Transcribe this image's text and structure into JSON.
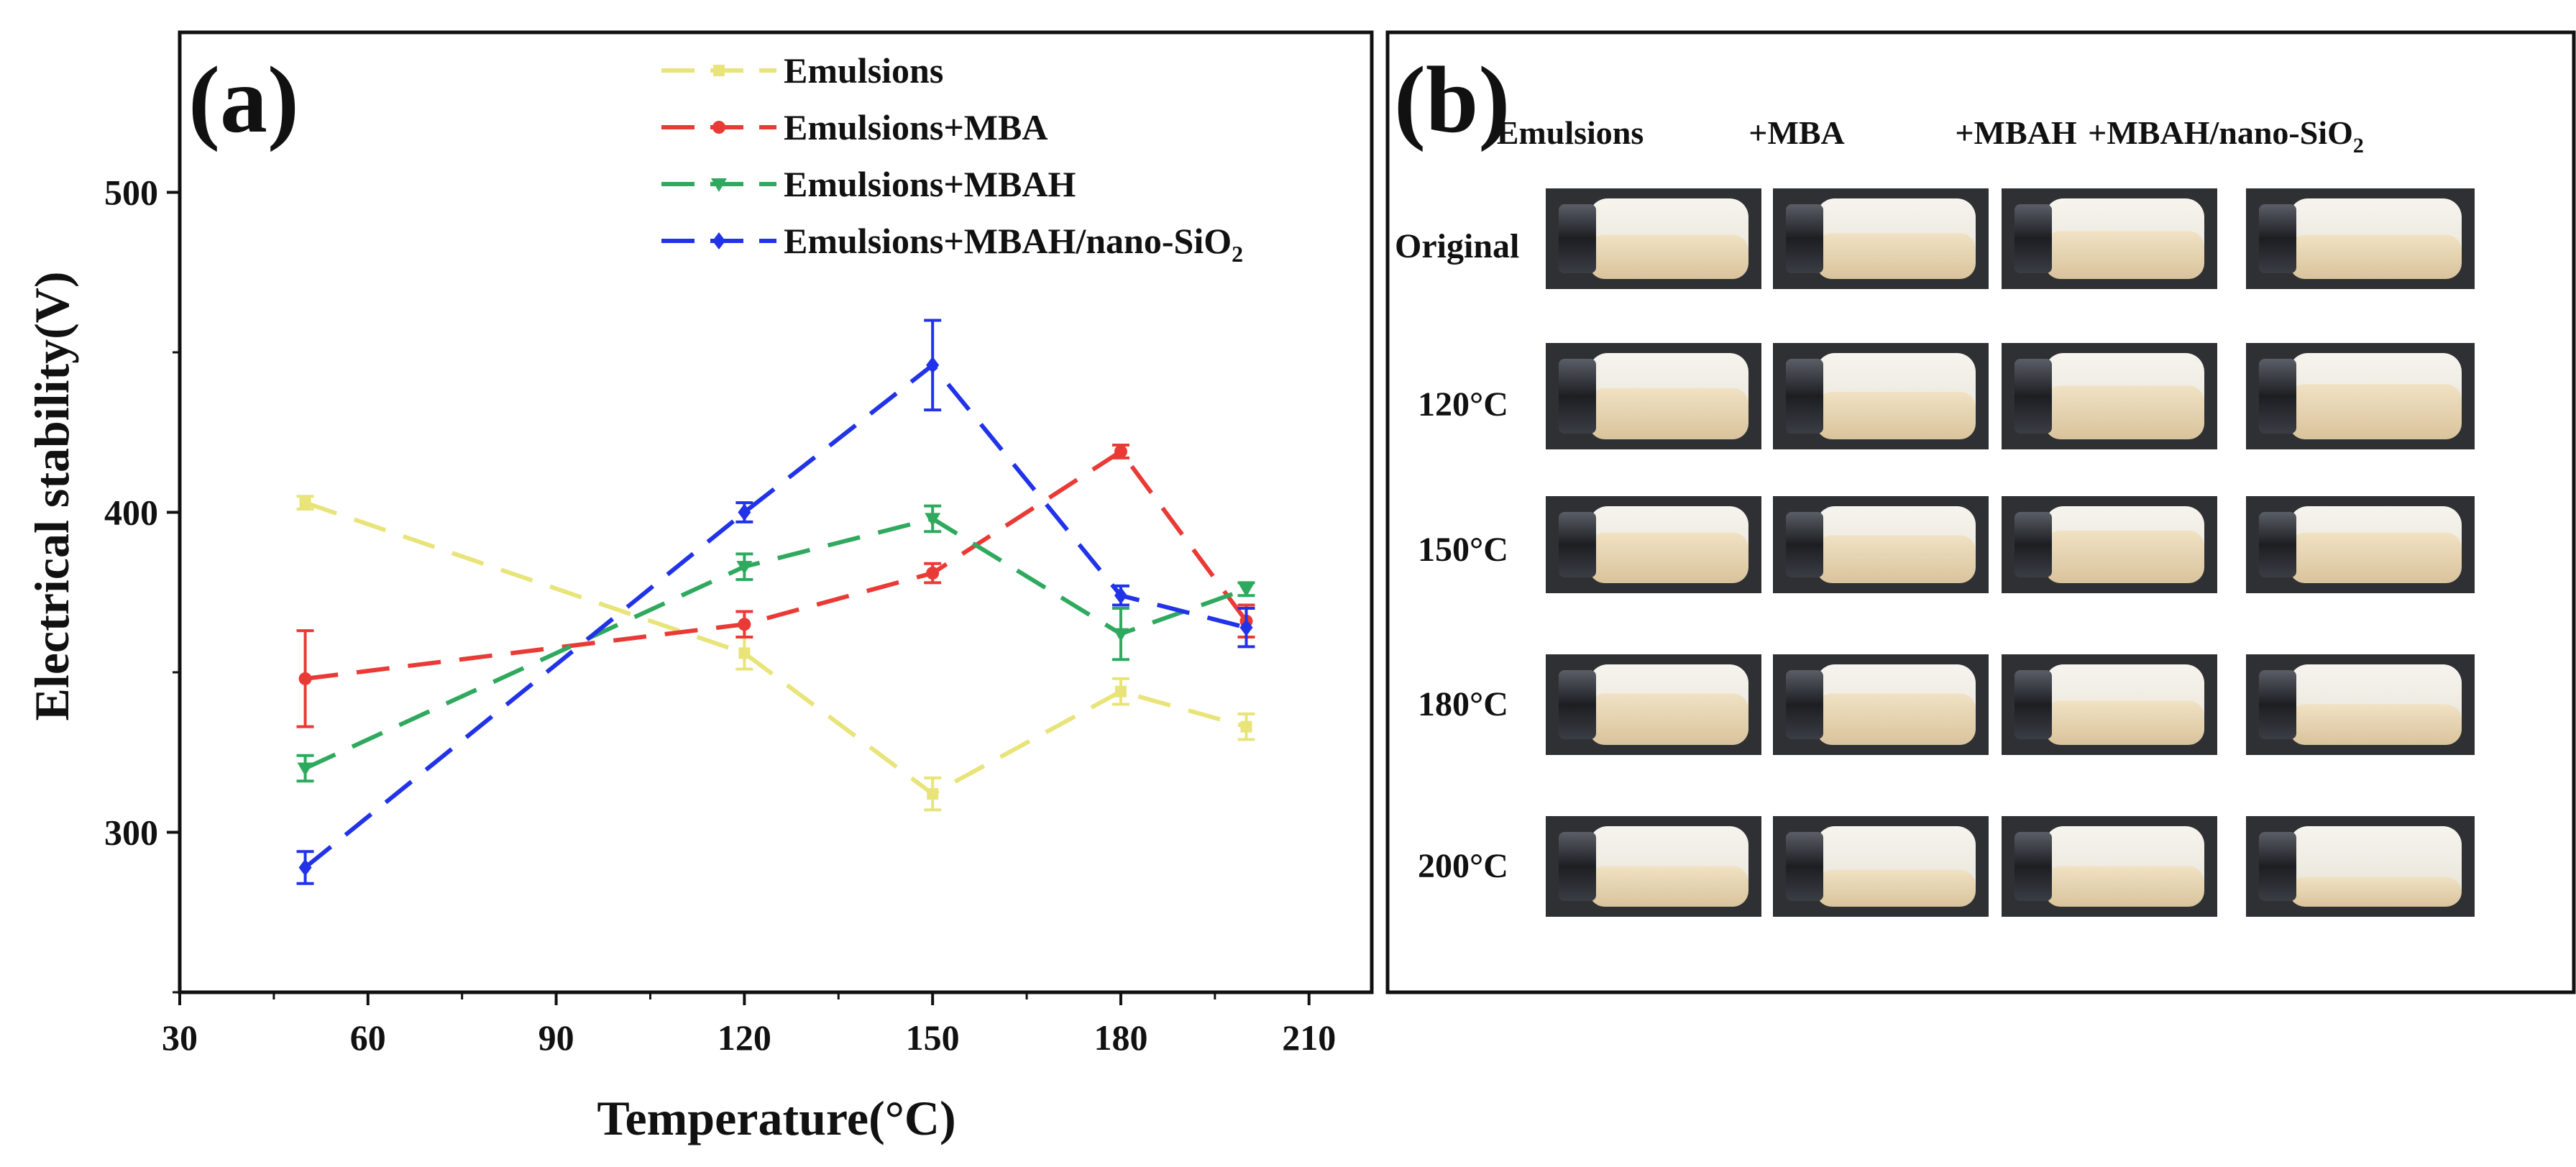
{
  "panel_a": {
    "label": "(a)",
    "chart_data": {
      "type": "line",
      "xlabel": "Temperature(°C)",
      "ylabel": "Electrical stability(V)",
      "xlim": [
        30,
        220
      ],
      "ylim": [
        250,
        550
      ],
      "x_ticks": [
        30,
        60,
        90,
        120,
        150,
        180,
        210
      ],
      "y_ticks": [
        300,
        400,
        500
      ],
      "x": [
        50,
        120,
        150,
        180,
        200
      ],
      "series": [
        {
          "name": "Emulsions",
          "color": "#e8e47a",
          "marker": "square",
          "values": [
            403,
            356,
            312,
            344,
            333
          ],
          "errors": [
            2,
            5,
            5,
            4,
            4
          ]
        },
        {
          "name": "Emulsions+MBA",
          "color": "#ea3a35",
          "marker": "circle",
          "values": [
            348,
            365,
            381,
            419,
            366
          ],
          "errors": [
            15,
            4,
            3,
            2,
            5
          ]
        },
        {
          "name": "Emulsions+MBAH",
          "color": "#2fa95e",
          "marker": "triangle-down",
          "values": [
            320,
            383,
            398,
            362,
            376
          ],
          "errors": [
            4,
            4,
            4,
            8,
            2
          ]
        },
        {
          "name": "Emulsions+MBAH/nano-SiO",
          "name_sub": "2",
          "color": "#2133e8",
          "marker": "diamond",
          "values": [
            289,
            400,
            446,
            374,
            364
          ],
          "errors": [
            5,
            3,
            14,
            3,
            6
          ]
        }
      ]
    }
  },
  "panel_b": {
    "label": "(b)",
    "columns": [
      "Emulsions",
      "+MBA",
      "+MBAH",
      "+MBAH/nano-SiO"
    ],
    "last_column_sub": "2",
    "rows": [
      "Original",
      "120°C",
      "150°C",
      "180°C",
      "200°C"
    ],
    "photo_fill_levels": [
      [
        0.5,
        0.52,
        0.55,
        0.5
      ],
      [
        0.55,
        0.5,
        0.58,
        0.6
      ],
      [
        0.62,
        0.58,
        0.65,
        0.62
      ],
      [
        0.6,
        0.6,
        0.5,
        0.45
      ],
      [
        0.45,
        0.4,
        0.45,
        0.3
      ]
    ]
  }
}
